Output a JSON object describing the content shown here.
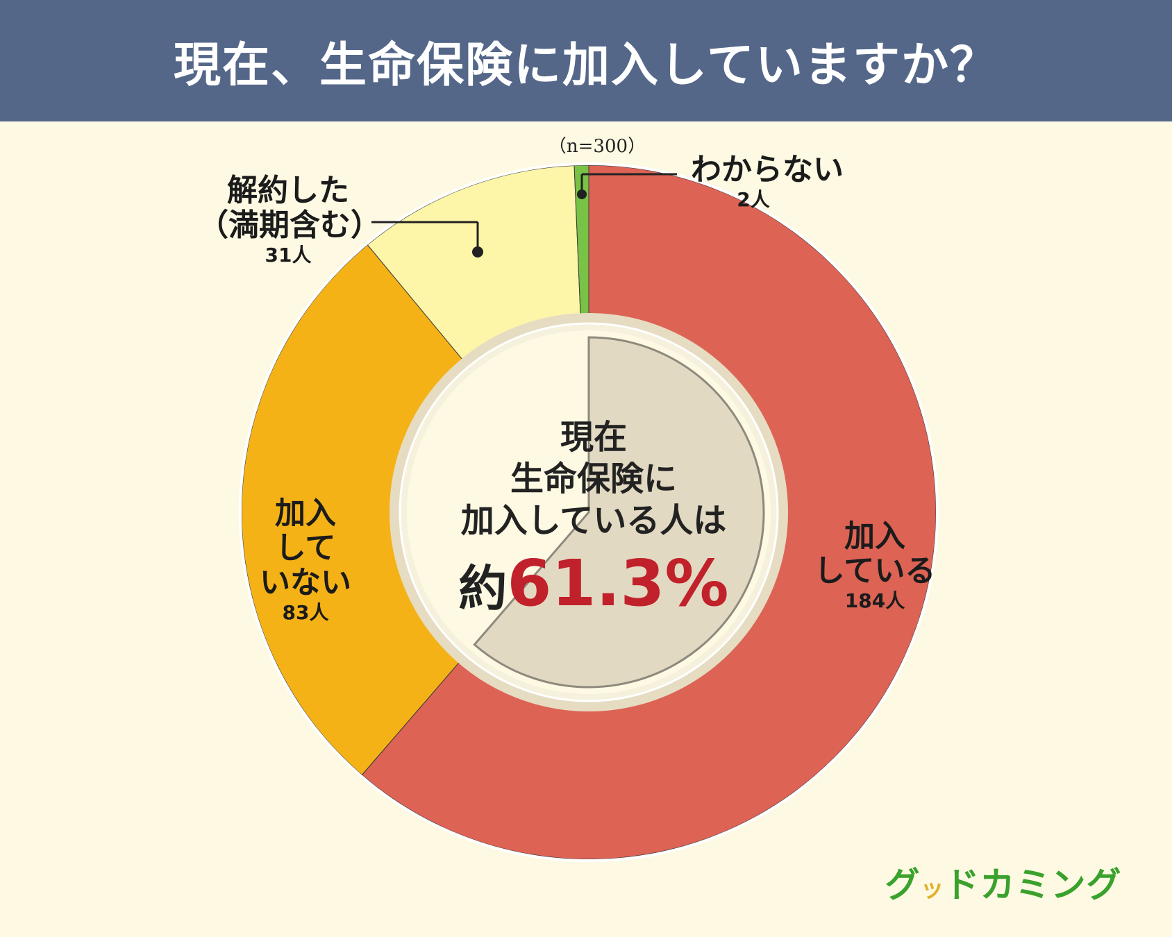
{
  "header": {
    "title": "現在、生命保険に加入していますか？"
  },
  "sample_note": "（n=300）",
  "center": {
    "line1": "現在",
    "line2": "生命保険に",
    "line3": "加入している人は",
    "prefix": "約",
    "highlight": "61.3%"
  },
  "logo": {
    "part1": "グ",
    "part2": "ッ",
    "part3": "ドカミング"
  },
  "chart_data": {
    "type": "pie",
    "style": "donut",
    "total": 300,
    "series": [
      {
        "key": "joined",
        "label_lines": [
          "加入",
          "している"
        ],
        "count_label": "184人",
        "value": 184,
        "color": "#dd6355"
      },
      {
        "key": "not",
        "label_lines": [
          "加入",
          "して",
          "いない"
        ],
        "count_label": "83人",
        "value": 83,
        "color": "#f5b217"
      },
      {
        "key": "canceled",
        "label_lines": [
          "解約した",
          "（満期含む）"
        ],
        "count_label": "31人",
        "value": 31,
        "color": "#fdf5a8"
      },
      {
        "key": "unknown",
        "label_lines": [
          "わからない"
        ],
        "count_label": "2人",
        "value": 2,
        "color": "#78c246"
      }
    ],
    "highlight_value_percent": 61.3
  }
}
